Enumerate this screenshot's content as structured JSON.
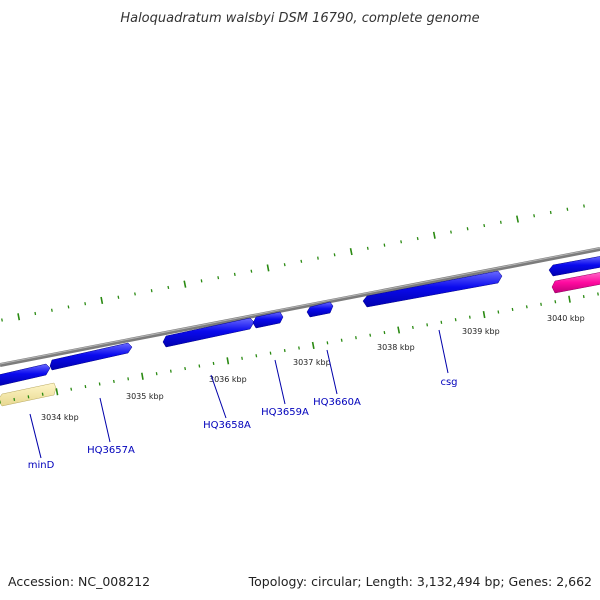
{
  "title": "Haloquadratum walsbyi DSM 16790, complete genome",
  "footer": {
    "accession": "Accession: NC_008212",
    "summary": "Topology: circular; Length: 3,132,494 bp; Genes: 2,662"
  },
  "colors": {
    "background": "#ffffff",
    "backbone": "#8c8c8c",
    "gene_forward": "#0a0aee",
    "gene_reverse": "#ffe9a8",
    "gene_reverse_other": "#ff0aa0",
    "tick": "#2a8a12",
    "label_text": "#0000bb",
    "label_line": "#0000aa"
  },
  "scale": {
    "unit": "kbp",
    "labels": [
      "3034 kbp",
      "3035 kbp",
      "3036 kbp",
      "3037 kbp",
      "3038 kbp",
      "3039 kbp",
      "3040 kbp"
    ]
  },
  "genes": [
    {
      "name": "minD",
      "strand": "reverse"
    },
    {
      "name": "HQ3657A",
      "strand": "forward"
    },
    {
      "name": "HQ3658A",
      "strand": "forward"
    },
    {
      "name": "HQ3659A",
      "strand": "forward"
    },
    {
      "name": "HQ3660A",
      "strand": "forward"
    },
    {
      "name": "csg",
      "strand": "forward"
    }
  ]
}
